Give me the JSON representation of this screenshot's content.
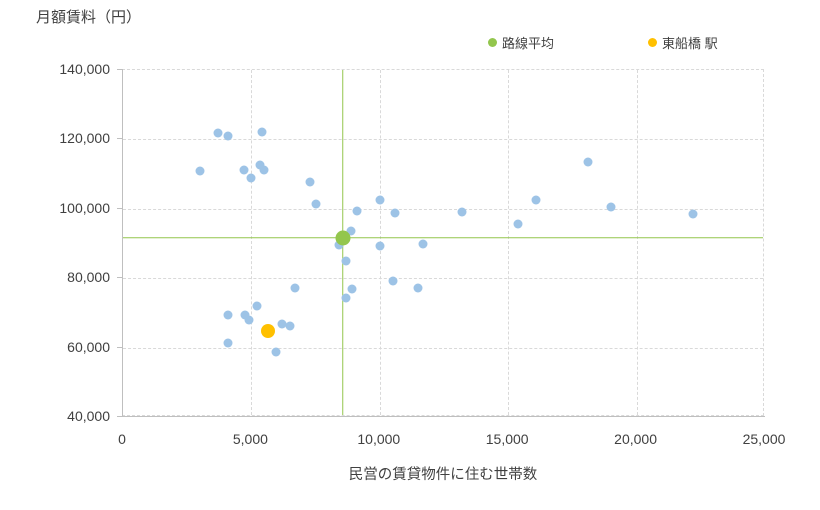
{
  "legend": {
    "items": [
      {
        "id": "route-average",
        "label": "路線平均",
        "color": "#93C64D"
      },
      {
        "id": "target-station",
        "label": "東船橋 駅",
        "color": "#FFC000"
      }
    ]
  },
  "colors": {
    "grid": "#D9D9D9",
    "axis": "#BFBFBF",
    "text": "#404040",
    "crosshair": "#93C64D"
  },
  "chart_data": {
    "type": "scatter",
    "title": "",
    "y_axis": {
      "label": "月額賃料（円）",
      "min": 40000,
      "max": 140000,
      "ticks": [
        40000,
        60000,
        80000,
        100000,
        120000,
        140000
      ],
      "tick_labels": [
        "40,000",
        "60,000",
        "80,000",
        "100,000",
        "120,000",
        "140,000"
      ]
    },
    "x_axis": {
      "label": "民営の賃貸物件に住む世帯数",
      "min": 0,
      "max": 25000,
      "ticks": [
        0,
        5000,
        10000,
        15000,
        20000,
        25000
      ],
      "tick_labels": [
        "0",
        "5,000",
        "10,000",
        "15,000",
        "20,000",
        "25,000"
      ]
    },
    "grid": true,
    "legend_position": "top",
    "series": [
      {
        "id": "stations",
        "label": "",
        "color": "#9DC3E6",
        "marker_size": 9,
        "crosshair": false,
        "points": [
          [
            3000,
            110800
          ],
          [
            3700,
            121900
          ],
          [
            4100,
            121000
          ],
          [
            5400,
            122100
          ],
          [
            4700,
            111300
          ],
          [
            5350,
            112700
          ],
          [
            5500,
            111200
          ],
          [
            5000,
            108900
          ],
          [
            7300,
            107600
          ],
          [
            7500,
            101300
          ],
          [
            8860,
            93500
          ],
          [
            8430,
            89700
          ],
          [
            8700,
            85100
          ],
          [
            8900,
            76900
          ],
          [
            8700,
            74300
          ],
          [
            9130,
            99500
          ],
          [
            10000,
            102600
          ],
          [
            10600,
            98700
          ],
          [
            10000,
            89400
          ],
          [
            10500,
            79300
          ],
          [
            11500,
            77200
          ],
          [
            11700,
            89900
          ],
          [
            4100,
            69400
          ],
          [
            4750,
            69300
          ],
          [
            4900,
            68000
          ],
          [
            5200,
            71900
          ],
          [
            4100,
            61200
          ],
          [
            6200,
            66800
          ],
          [
            6500,
            66300
          ],
          [
            5940,
            58800
          ],
          [
            6700,
            77100
          ],
          [
            13200,
            99200
          ],
          [
            15400,
            95500
          ],
          [
            16100,
            102400
          ],
          [
            18100,
            113600
          ],
          [
            19000,
            100400
          ],
          [
            22200,
            98500
          ]
        ]
      },
      {
        "id": "route-average",
        "label": "路線平均",
        "color": "#93C64D",
        "marker_size": 15,
        "crosshair": true,
        "points": [
          [
            8560,
            91700
          ]
        ]
      },
      {
        "id": "target-station",
        "label": "東船橋 駅",
        "color": "#FFC000",
        "marker_size": 14,
        "crosshair": false,
        "points": [
          [
            5650,
            64900
          ]
        ]
      }
    ]
  }
}
